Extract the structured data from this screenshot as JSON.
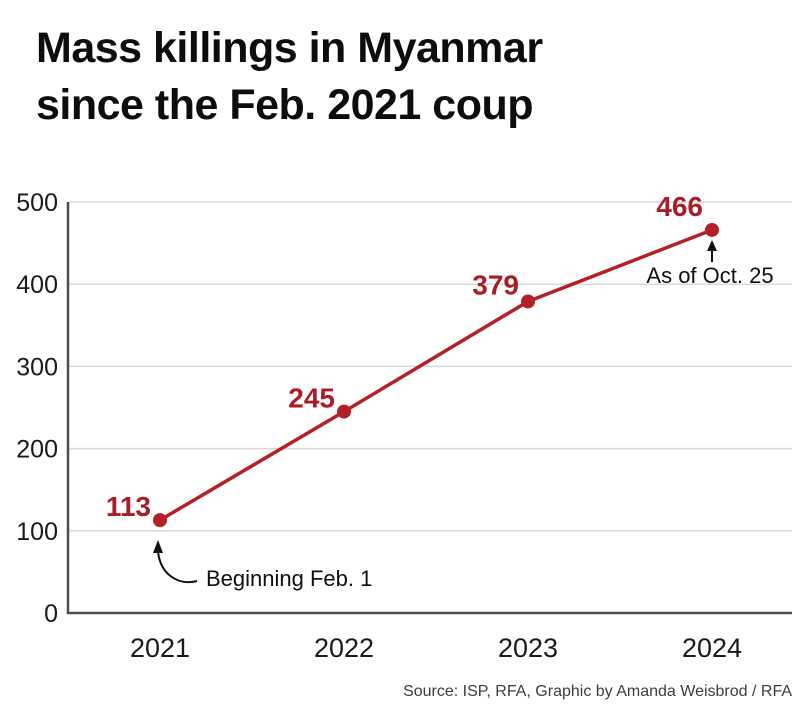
{
  "page": {
    "title_line1": "Mass killings in Myanmar",
    "title_line2": "since the Feb. 2021 coup",
    "source": "Source: ISP, RFA, Graphic by Amanda Weisbrod / RFA"
  },
  "colors": {
    "accent_red": "#b42025",
    "label_red": "#a91e26",
    "axis": "#4d4d4d",
    "gridline": "#d8d8d8",
    "tick_text": "#1a1a1a",
    "annotation_text": "#101010",
    "arrow": "#111111"
  },
  "chart_data": {
    "type": "line",
    "title": "Mass killings in Myanmar since the Feb. 2021 coup",
    "categories": [
      "2021",
      "2022",
      "2023",
      "2024"
    ],
    "values": [
      113,
      245,
      379,
      466
    ],
    "point_labels": [
      "113",
      "245",
      "379",
      "466"
    ],
    "xlabel": "",
    "ylabel": "",
    "ylim": [
      0,
      500
    ],
    "yticks": [
      0,
      100,
      200,
      300,
      400,
      500
    ],
    "grid": true,
    "legend": "none",
    "line_color": "#b42025",
    "annotations": [
      {
        "text": "Beginning Feb. 1",
        "target_category": "2021",
        "target_value": 113,
        "arrow": "curved-up"
      },
      {
        "text": "As of Oct. 25",
        "target_category": "2024",
        "target_value": 466,
        "arrow": "straight-up"
      }
    ]
  }
}
